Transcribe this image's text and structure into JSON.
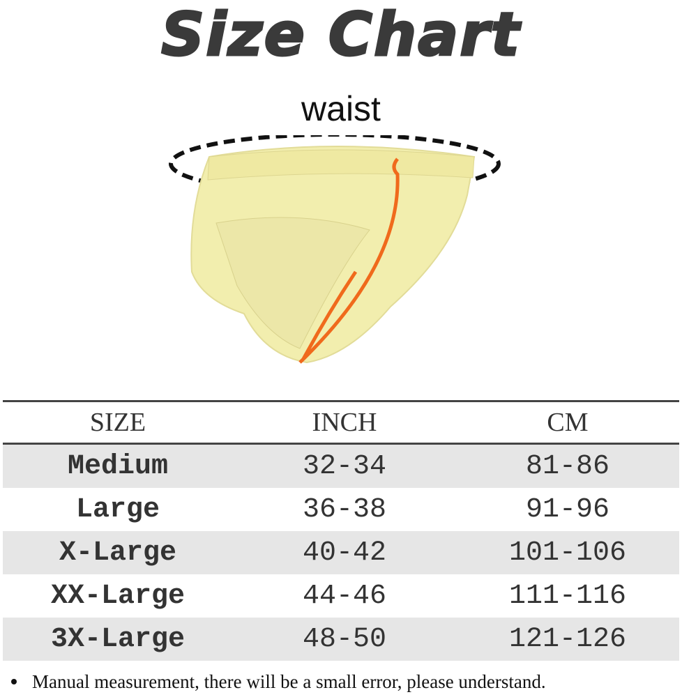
{
  "title": "Size Chart",
  "label": "waist",
  "table": {
    "header": [
      "SIZE",
      "INCH",
      "CM"
    ],
    "rows": [
      [
        "Medium",
        "32-34",
        "81-86"
      ],
      [
        "Large",
        "36-38",
        "91-96"
      ],
      [
        "X-Large",
        "40-42",
        "101-106"
      ],
      [
        "XX-Large",
        "44-46",
        "111-116"
      ],
      [
        "3X-Large",
        "48-50",
        "121-126"
      ]
    ]
  },
  "note": "Manual measurement, there will be a small error, please understand."
}
